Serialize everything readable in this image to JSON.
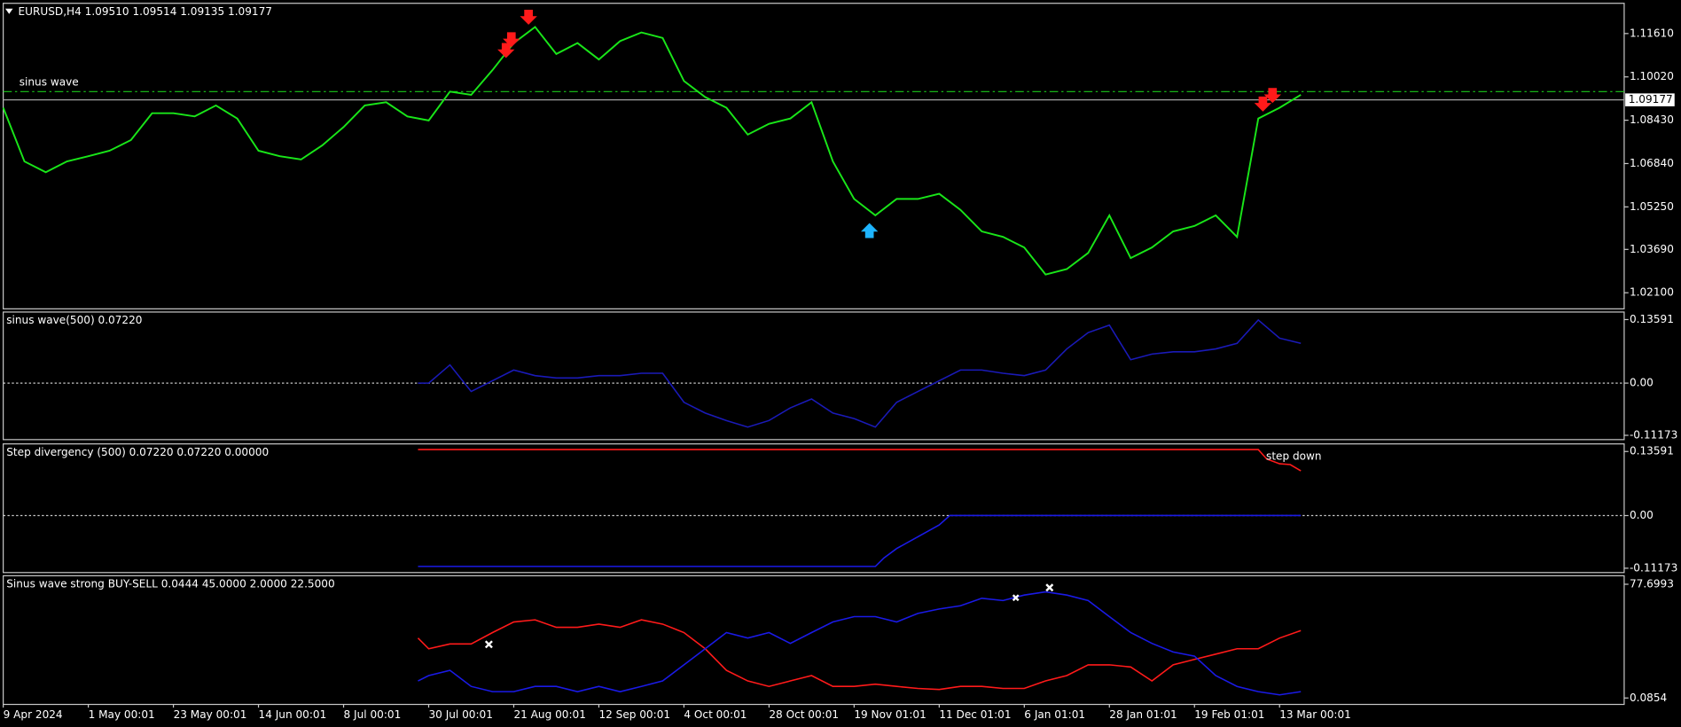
{
  "chart_data": [
    {
      "type": "line",
      "title": "EURUSD,H4  1.09510 1.09514 1.09135 1.09177",
      "annotation": "sinus wave",
      "xlim": [
        0,
        762
      ],
      "ylim": [
        1.0151,
        1.1272
      ],
      "yticks": [
        {
          "value": 1.1161,
          "label": "1.11610"
        },
        {
          "value": 1.1002,
          "label": "1.10020"
        },
        {
          "value": 1.0843,
          "label": "1.08430"
        },
        {
          "value": 1.0684,
          "label": "1.06840"
        },
        {
          "value": 1.0525,
          "label": "1.05250"
        },
        {
          "value": 1.0369,
          "label": "1.03690"
        },
        {
          "value": 1.021,
          "label": "1.02100"
        }
      ],
      "current_price": 1.09177,
      "level": 1.0948,
      "series": [
        {
          "name": "EURUSD",
          "color": "#19e619",
          "x": [
            0,
            10,
            20,
            30,
            40,
            50,
            60,
            70,
            80,
            90,
            100,
            110,
            120,
            130,
            140,
            150,
            160,
            170,
            180,
            190,
            200,
            210,
            220,
            230,
            240,
            250,
            260,
            270,
            280,
            290,
            300,
            310,
            320,
            330,
            340,
            350,
            360,
            370,
            380,
            390,
            400,
            410,
            420,
            430,
            440,
            450,
            460,
            470,
            480,
            490,
            500,
            510,
            520,
            530,
            540,
            550,
            560,
            570,
            580,
            590,
            600,
            610
          ],
          "values": [
            1.0889,
            1.0692,
            1.0652,
            1.0692,
            1.0711,
            1.0731,
            1.077,
            1.0869,
            1.0869,
            1.0857,
            1.0897,
            1.0849,
            1.0731,
            1.0711,
            1.0699,
            1.0751,
            1.0818,
            1.0897,
            1.0909,
            1.0857,
            1.0842,
            1.0948,
            1.0936,
            1.1027,
            1.1126,
            1.1185,
            1.1086,
            1.1126,
            1.1066,
            1.1133,
            1.1165,
            1.1145,
            1.0987,
            1.0928,
            1.0889,
            1.079,
            1.083,
            1.0849,
            1.0909,
            1.0692,
            1.0554,
            1.0494,
            1.0554,
            1.0554,
            1.0573,
            1.0514,
            1.0435,
            1.0415,
            1.0376,
            1.0277,
            1.0297,
            1.0356,
            1.0494,
            1.0337,
            1.0376,
            1.0435,
            1.0455,
            1.0494,
            1.0415,
            1.0849,
            1.0889,
            1.0936
          ]
        }
      ]
    },
    {
      "type": "line",
      "title": "sinus wave(500) 0.07220",
      "xlim": [
        0,
        762
      ],
      "ylim": [
        -0.1209,
        0.152
      ],
      "yticks": [
        0.13591,
        {
          "value": 0,
          "label": "0.00"
        },
        -0.11173
      ],
      "series": [
        {
          "name": "sinus wave",
          "color": "#1a1ab8",
          "x": [
            195,
            200,
            210,
            220,
            230,
            240,
            250,
            260,
            270,
            280,
            290,
            300,
            310,
            320,
            330,
            340,
            350,
            360,
            370,
            380,
            390,
            400,
            410,
            420,
            430,
            440,
            450,
            460,
            470,
            480,
            490,
            500,
            510,
            520,
            530,
            540,
            550,
            560,
            570,
            580,
            590,
            600,
            610
          ],
          "values": [
            0,
            0,
            0.039,
            -0.018,
            0.005,
            0.028,
            0.016,
            0.011,
            0.011,
            0.016,
            0.016,
            0.021,
            0.021,
            -0.041,
            -0.064,
            -0.08,
            -0.094,
            -0.08,
            -0.053,
            -0.034,
            -0.064,
            -0.076,
            -0.094,
            -0.041,
            -0.018,
            0.005,
            0.028,
            0.028,
            0.021,
            0.016,
            0.028,
            0.073,
            0.108,
            0.124,
            0.05,
            0.062,
            0.067,
            0.067,
            0.073,
            0.085,
            0.135,
            0.096,
            0.085
          ]
        }
      ]
    },
    {
      "type": "line",
      "title": "Step divergency (500) 0.07220 0.07220 0.00000",
      "annotation": "step down",
      "xlim": [
        0,
        762
      ],
      "ylim": [
        -0.1209,
        0.152
      ],
      "yticks": [
        0.13591,
        {
          "value": 0,
          "label": "0.00"
        },
        -0.11173
      ],
      "series": [
        {
          "name": "red",
          "color": "#ff1a1a",
          "x": [
            195,
            590,
            594,
            600,
            605,
            610
          ],
          "values": [
            0.14,
            0.14,
            0.12,
            0.11,
            0.108,
            0.095
          ]
        },
        {
          "name": "blue",
          "color": "#1a1ae6",
          "x": [
            195,
            410,
            414,
            420,
            430,
            440,
            445,
            610
          ],
          "values": [
            -0.108,
            -0.108,
            -0.09,
            -0.07,
            -0.045,
            -0.02,
            0,
            0
          ]
        }
      ]
    },
    {
      "type": "line",
      "title": "Sinus wave strong BUY-SELL 0.0444 45.0000 2.0000 22.5000",
      "xlim": [
        0,
        762
      ],
      "ylim": [
        -4.3,
        83.5
      ],
      "yticks": [
        77.6993,
        0.0854
      ],
      "xticks": [
        {
          "value": 0,
          "label": "9 Apr 2024"
        },
        {
          "value": 40,
          "label": "1 May 00:01"
        },
        {
          "value": 80,
          "label": "23 May 00:01"
        },
        {
          "value": 120,
          "label": "14 Jun 00:01"
        },
        {
          "value": 160,
          "label": "8 Jul 00:01"
        },
        {
          "value": 200,
          "label": "30 Jul 00:01"
        },
        {
          "value": 240,
          "label": "21 Aug 00:01"
        },
        {
          "value": 280,
          "label": "12 Sep 00:01"
        },
        {
          "value": 320,
          "label": "4 Oct 00:01"
        },
        {
          "value": 360,
          "label": "28 Oct 00:01"
        },
        {
          "value": 400,
          "label": "19 Nov 01:01"
        },
        {
          "value": 440,
          "label": "11 Dec 01:01"
        },
        {
          "value": 480,
          "label": "6 Jan 01:01"
        },
        {
          "value": 520,
          "label": "28 Jan 01:01"
        },
        {
          "value": 560,
          "label": "19 Feb 01:01"
        },
        {
          "value": 600,
          "label": "13 Mar 00:01"
        }
      ],
      "series": [
        {
          "name": "sell",
          "color": "#ff1a1a",
          "x": [
            195,
            200,
            210,
            220,
            230,
            240,
            250,
            260,
            270,
            280,
            290,
            300,
            310,
            320,
            330,
            340,
            350,
            360,
            370,
            380,
            390,
            400,
            410,
            420,
            430,
            440,
            450,
            460,
            470,
            480,
            490,
            500,
            510,
            520,
            530,
            540,
            550,
            560,
            570,
            580,
            590,
            600,
            610
          ],
          "values": [
            41,
            33.7,
            37,
            37,
            44.7,
            52,
            53.4,
            48.3,
            48.3,
            50.5,
            48.3,
            53.4,
            50.5,
            44.7,
            33.7,
            19,
            11.7,
            8,
            11.7,
            15.4,
            8,
            8,
            9.5,
            8,
            6.6,
            5.9,
            8,
            8,
            6.6,
            6.6,
            11.7,
            15.4,
            22.7,
            22.7,
            21.2,
            11.7,
            22.7,
            26.4,
            30,
            33.7,
            33.7,
            41,
            46.1
          ]
        },
        {
          "name": "buy",
          "color": "#1a1ae6",
          "x": [
            195,
            200,
            210,
            220,
            230,
            240,
            250,
            260,
            270,
            280,
            290,
            300,
            310,
            320,
            330,
            340,
            350,
            360,
            370,
            380,
            390,
            400,
            410,
            420,
            430,
            440,
            450,
            460,
            470,
            480,
            490,
            500,
            510,
            520,
            530,
            540,
            550,
            560,
            570,
            580,
            590,
            600,
            610
          ],
          "values": [
            11.7,
            15.4,
            19,
            8,
            4.4,
            4.4,
            8,
            8,
            4.4,
            8,
            4.4,
            8,
            11.7,
            22.7,
            33.7,
            44.7,
            41,
            44.7,
            37.3,
            44.7,
            52,
            55.6,
            55.6,
            52,
            57.8,
            60.8,
            63,
            68.1,
            66.6,
            70.3,
            72.5,
            70.3,
            66.6,
            55.6,
            44.7,
            37.3,
            31.5,
            28.6,
            15.4,
            8,
            4.4,
            2.2,
            4.4
          ]
        }
      ]
    }
  ]
}
